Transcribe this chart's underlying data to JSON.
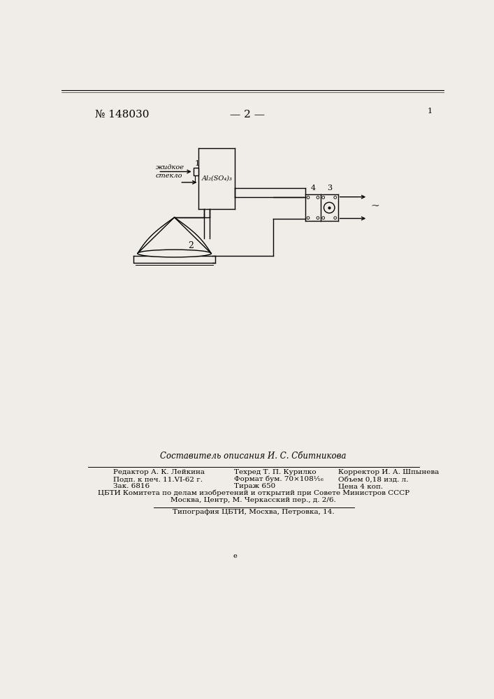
{
  "bg_color": "#f5f5f0",
  "page_bg": "#f0ede8",
  "patent_number": "№ 148030",
  "page_number_text": "— 2 —",
  "label_zhidkoe_steklo": "жидкое\nстекло",
  "label_al2so4": "Al₂(SO₄)₃",
  "label_1": "1",
  "label_2": "2",
  "label_3": "3",
  "label_4": "4",
  "label_tilde": "~",
  "footer_composer": "Составитель описания И. С. Сбитникова",
  "footer_row1_left": "Редактор А. К. Лейкина",
  "footer_row1_mid": "Техред Т. П. Курилко",
  "footer_row1_right": "Корректор И. А. Шпынева",
  "footer_row2_left": "Подп. к печ. 11.VI-62 г.",
  "footer_row2_mid": "Формат бум. 70×108¹⁄₁₆",
  "footer_row2_right": "Объем 0,18 изд. л.",
  "footer_row3_left": "Зак. 6816",
  "footer_row3_mid": "Тираж 650",
  "footer_row3_right": "Цена 4 коп.",
  "footer_cbti": "ЦБТИ Комитета по делам изобретений и открытий при Совете Министров СССР",
  "footer_moscow": "Москва, Центр, М. Черкасский пер., д. 2/6.",
  "footer_typo": "Типография ЦБТИ, Мосхва, Петровка, 14.",
  "small_e": "e"
}
